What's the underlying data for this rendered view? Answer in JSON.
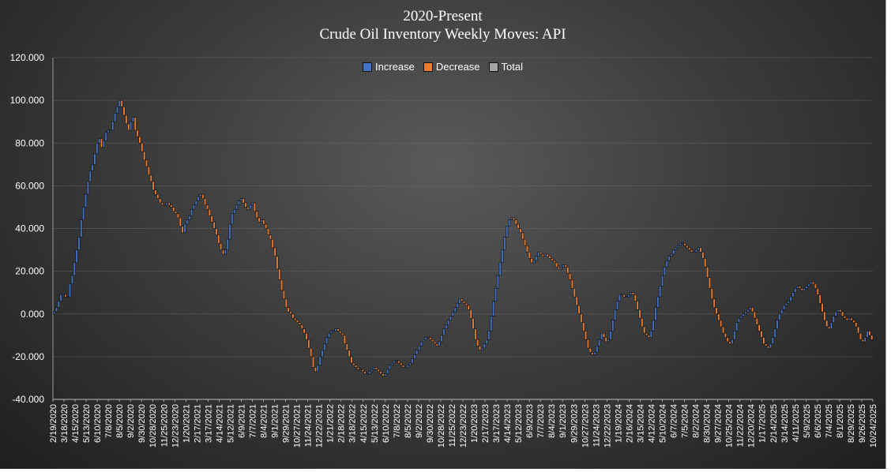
{
  "chart_data": {
    "type": "waterfall",
    "title": "2020-Present",
    "subtitle": "Crude Oil Inventory Weekly Moves:  API",
    "legend": [
      {
        "name": "Increase",
        "color": "#4472C4"
      },
      {
        "name": "Decrease",
        "color": "#ED7D31"
      },
      {
        "name": "Total",
        "color": "#A5A5A5"
      }
    ],
    "legend_position": "top-center",
    "ylim": [
      -40,
      120
    ],
    "y_ticks": [
      "120.000",
      "100.000",
      "80.000",
      "60.000",
      "40.000",
      "20.000",
      "0.000",
      "-20.000",
      "-40.000"
    ],
    "grid": true,
    "x_tick_labels": [
      "2/19/2020",
      "3/18/2020",
      "4/15/2020",
      "5/13/2020",
      "6/10/2020",
      "7/8/2020",
      "8/5/2020",
      "9/2/2020",
      "9/30/2020",
      "10/28/2020",
      "11/25/2020",
      "12/23/2020",
      "1/20/2021",
      "2/17/2021",
      "3/17/2021",
      "4/14/2021",
      "5/12/2021",
      "6/9/2021",
      "7/7/2021",
      "8/4/2021",
      "9/1/2021",
      "9/29/2021",
      "10/27/2021",
      "11/24/2021",
      "12/22/2021",
      "1/21/2022",
      "2/18/2022",
      "3/18/2022",
      "4/15/2022",
      "5/13/2022",
      "6/10/2022",
      "7/8/2022",
      "8/5/2022",
      "9/2/2022",
      "9/30/2022",
      "10/28/2022",
      "11/25/2022",
      "12/23/2022",
      "1/20/2023",
      "2/17/2023",
      "3/17/2023",
      "4/14/2023",
      "5/12/2023",
      "6/9/2023",
      "7/7/2023",
      "8/4/2023",
      "9/1/2023",
      "9/29/2023",
      "10/27/2023",
      "11/24/2023",
      "12/22/2023",
      "1/19/2024",
      "2/16/2024",
      "3/15/2024",
      "4/12/2024",
      "5/10/2024",
      "6/7/2024",
      "7/5/2024",
      "8/2/2024",
      "8/30/2024",
      "9/27/2024",
      "10/25/2024",
      "11/22/2024",
      "12/20/2024",
      "1/17/2025",
      "2/14/2025",
      "3/14/2025",
      "4/11/2025",
      "5/9/2025",
      "6/6/2025",
      "7/4/2025",
      "8/1/2025",
      "8/29/2025",
      "9/26/2025",
      "10/24/2025"
    ],
    "cumulative_path": [
      0,
      1,
      3,
      6,
      9,
      9,
      8,
      8,
      14,
      18,
      24,
      30,
      36,
      44,
      50,
      56,
      62,
      67,
      70,
      75,
      80,
      82,
      78,
      81,
      85,
      86,
      86,
      90,
      94,
      97,
      100,
      97,
      93,
      89,
      86,
      90,
      92,
      86,
      83,
      80,
      76,
      72,
      69,
      65,
      62,
      58,
      56,
      54,
      52,
      51,
      51,
      52,
      51,
      50,
      48,
      47,
      45,
      41,
      38,
      42,
      44,
      46,
      49,
      51,
      53,
      55,
      56,
      54,
      51,
      49,
      46,
      43,
      40,
      37,
      33,
      30,
      28,
      30,
      35,
      42,
      47,
      49,
      51,
      53,
      54,
      52,
      50,
      49,
      51,
      52,
      48,
      45,
      43,
      44,
      42,
      40,
      37,
      35,
      31,
      27,
      21,
      16,
      11,
      7,
      3,
      1,
      0,
      -2,
      -3,
      -4,
      -5,
      -7,
      -9,
      -12,
      -16,
      -20,
      -25,
      -27,
      -24,
      -20,
      -17,
      -14,
      -11,
      -9,
      -8,
      -8,
      -7,
      -8,
      -9,
      -10,
      -14,
      -17,
      -20,
      -23,
      -24,
      -25,
      -26,
      -26,
      -27,
      -28,
      -28,
      -27,
      -26,
      -25,
      -26,
      -27,
      -28,
      -29,
      -28,
      -26,
      -24,
      -23,
      -22,
      -22,
      -23,
      -24,
      -25,
      -25,
      -24,
      -23,
      -21,
      -19,
      -17,
      -15,
      -13,
      -12,
      -11,
      -11,
      -12,
      -13,
      -14,
      -15,
      -13,
      -10,
      -7,
      -5,
      -3,
      -1,
      1,
      3,
      5,
      7,
      6,
      5,
      4,
      2,
      -2,
      -7,
      -12,
      -15,
      -17,
      -16,
      -14,
      -12,
      -8,
      -1,
      6,
      12,
      18,
      24,
      30,
      36,
      41,
      44,
      45,
      44,
      42,
      40,
      38,
      35,
      32,
      29,
      26,
      24,
      25,
      27,
      29,
      28,
      27,
      28,
      27,
      26,
      25,
      24,
      22,
      21,
      22,
      23,
      22,
      19,
      16,
      12,
      8,
      4,
      0,
      -4,
      -8,
      -12,
      -16,
      -18,
      -19,
      -18,
      -15,
      -12,
      -9,
      -11,
      -13,
      -12,
      -8,
      -3,
      2,
      6,
      9,
      9,
      8,
      8,
      9,
      10,
      9,
      6,
      2,
      -2,
      -6,
      -9,
      -10,
      -11,
      -8,
      -3,
      3,
      8,
      13,
      18,
      22,
      25,
      27,
      28,
      30,
      31,
      32,
      33,
      33,
      32,
      31,
      30,
      29,
      29,
      30,
      31,
      29,
      26,
      22,
      17,
      12,
      7,
      3,
      0,
      -3,
      -6,
      -9,
      -11,
      -13,
      -14,
      -12,
      -8,
      -4,
      -2,
      -1,
      0,
      1,
      2,
      3,
      1,
      -2,
      -5,
      -8,
      -11,
      -14,
      -15,
      -16,
      -14,
      -11,
      -7,
      -3,
      0,
      2,
      4,
      5,
      6,
      8,
      10,
      12,
      13,
      12,
      11,
      12,
      13,
      14,
      15,
      14,
      12,
      9,
      5,
      1,
      -3,
      -6,
      -7,
      -4,
      -1,
      1,
      2,
      1,
      -1,
      -2,
      -3,
      -2,
      -3,
      -4,
      -6,
      -9,
      -12,
      -13,
      -11,
      -8,
      -10,
      -12
    ]
  }
}
